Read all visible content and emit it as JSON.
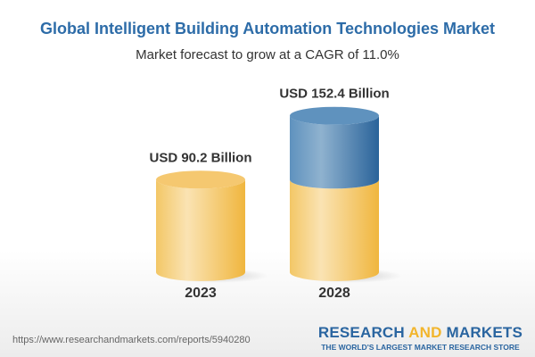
{
  "title": "Global Intelligent Building Automation Technologies Market",
  "subtitle": "Market forecast to grow at a CAGR of 11.0%",
  "chart_data": {
    "type": "bar",
    "style": "3d-cylinder",
    "categories": [
      "2023",
      "2028"
    ],
    "values": [
      90.2,
      152.4
    ],
    "data_labels": [
      "USD 90.2 Billion",
      "USD 152.4 Billion"
    ],
    "unit": "USD Billion",
    "colors": {
      "base": "#f2c35a",
      "growth": "#3d77ab"
    }
  },
  "footer": {
    "url": "https://www.researchandmarkets.com/reports/5940280",
    "logo_part1": "RESEARCH ",
    "logo_part2": "AND",
    "logo_part3": " MARKETS",
    "tagline": "THE WORLD'S LARGEST MARKET RESEARCH STORE"
  }
}
